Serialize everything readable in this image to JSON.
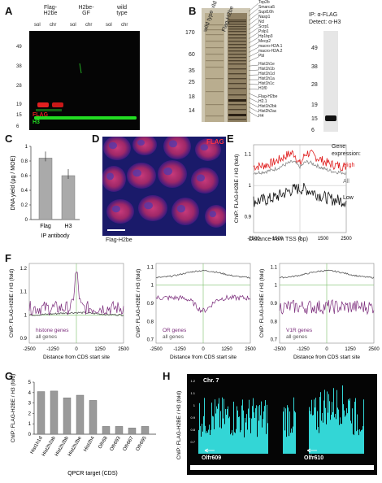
{
  "panel_labels": {
    "A": "A",
    "B": "B",
    "C": "C",
    "D": "D",
    "E": "E",
    "F": "F",
    "G": "G",
    "H": "H"
  },
  "panelA": {
    "headers": [
      "Flag-\nH2be",
      "H2be-\nGF",
      "wild\ntype"
    ],
    "lanes": [
      "sol",
      "chr",
      "sol",
      "chr",
      "sol",
      "chr"
    ],
    "mw": [
      "49",
      "38",
      "28",
      "19",
      "15",
      "6"
    ],
    "legend_flag": "FLAG",
    "legend_h3": "H3",
    "colors": {
      "flag": "#e02020",
      "h3": "#22dd22"
    }
  },
  "panelB": {
    "lanes": [
      "wild type",
      "Flag-H2be"
    ],
    "mw": [
      "170",
      "60",
      "35",
      "25",
      "18",
      "14"
    ],
    "proteins": [
      "Top2b",
      "Smarca5",
      "Supt16h",
      "Nasp1",
      "Ncl",
      "Scrp1",
      "Pslp1",
      "Hp1bp3",
      "Mecp2",
      "macro-H2A.1",
      "macro-H2A.2",
      "Pbl",
      "Hist1h1e",
      "Hist1h1b",
      "Hist1h1d",
      "Hist1h1a",
      "Hist1h1c",
      "H1f0",
      "Flag-H2be",
      "H2.1",
      "Hist1h2bk",
      "Hist2h2ac",
      "H4"
    ],
    "ip_title": "IP: α-FLAG\nDetect: α-H3",
    "ip_mw": [
      "49",
      "38",
      "28",
      "19",
      "15",
      "6"
    ]
  },
  "panelC": {
    "ylabel": "DNA yield (µg / MOE)",
    "xlabel": "IP antibody",
    "yticks": [
      "0",
      "0.2",
      "0.4",
      "0.6",
      "0.8",
      "1"
    ]
  },
  "panelD": {
    "flag_label": "FLAG",
    "caption": "Flag-H2be"
  },
  "panelE": {
    "ylabel": "ChIP: FLAG-H2BE / H3 (fold)",
    "xlabel": "Distance from TSS (bp)",
    "xticks": [
      "-2500",
      "-1500",
      "0",
      "1500",
      "2500"
    ],
    "legend_title": "Gene\nexpression:",
    "legend_high": "High",
    "legend_all": "All",
    "legend_low": "Low"
  },
  "panelF": {
    "ylabel": "ChIP: FLAG-H2BE / H3 (fold)",
    "xlabel": "Distance from CDS start site",
    "xticks": [
      "-2500",
      "-1250",
      "0",
      "1250",
      "2500"
    ],
    "left_legend": "histone genes\nall genes",
    "mid_legend": "OR genes\nall genes",
    "right_legend": "V1R genes\nall genes"
  },
  "chart_data": [
    {
      "type": "bar",
      "panel": "C",
      "categories": [
        "Flag",
        "H3"
      ],
      "values": [
        0.84,
        0.6
      ],
      "xlabel": "IP antibody",
      "ylabel": "DNA yield (µg / MOE)",
      "ylim": [
        0,
        1.0
      ]
    },
    {
      "type": "bar",
      "panel": "G",
      "categories": [
        "Hist1h1d",
        "Hist2h2ab",
        "Hist2h2bb",
        "Hist2h2be",
        "Hist2h4",
        "Olfr68",
        "Olfr693",
        "Olfr667",
        "Olfr695"
      ],
      "values": [
        4.1,
        4.15,
        3.5,
        3.75,
        3.25,
        0.75,
        0.75,
        0.6,
        0.75
      ],
      "xlabel": "QPCR target (CDS)",
      "ylabel": "ChIP: FLAG-H2BE / H3 (fold)",
      "yticks": [
        "0",
        "1",
        "2",
        "3",
        "4",
        "5"
      ],
      "ylim": [
        0,
        5
      ]
    }
  ],
  "panelH": {
    "chr": "Chr. 7",
    "ylabel": "ChIP: FLAG-H2BE / H3 (fold)",
    "gene1": "Olfr609",
    "gene2": "Olfr610",
    "ticks": [
      "1.2",
      "1.1",
      "1",
      "0.9",
      "0.8",
      "0.7"
    ]
  }
}
